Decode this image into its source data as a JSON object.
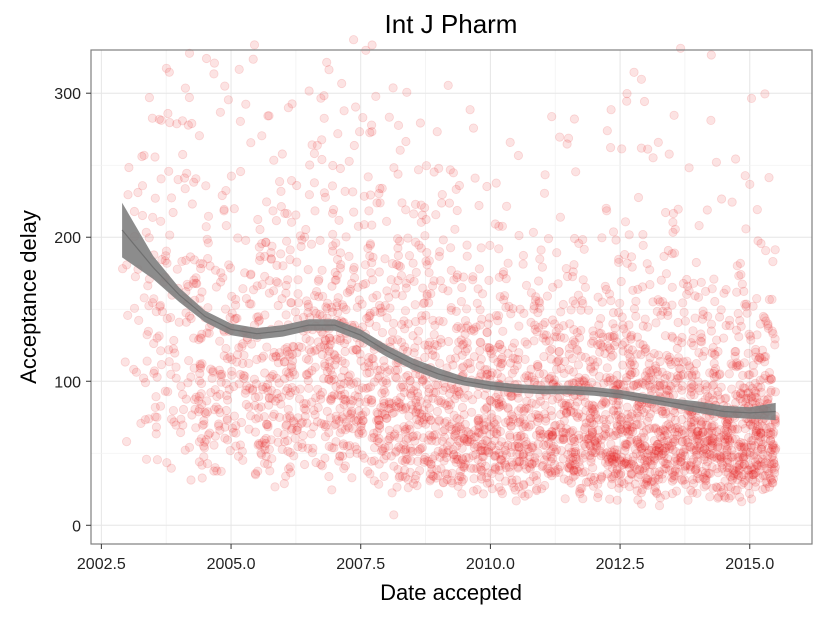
{
  "chart_data": {
    "type": "scatter",
    "title": "Int J Pharm",
    "xlabel": "Date accepted",
    "ylabel": "Acceptance delay",
    "xlim": [
      2002.3,
      2016.2
    ],
    "ylim": [
      -13,
      330
    ],
    "x_ticks": [
      2002.5,
      2005.0,
      2007.5,
      2010.0,
      2012.5,
      2015.0
    ],
    "x_tick_labels": [
      "2002.5",
      "2005.0",
      "2007.5",
      "2010.0",
      "2012.5",
      "2015.0"
    ],
    "y_ticks": [
      0,
      100,
      200,
      300
    ],
    "y_tick_labels": [
      "0",
      "100",
      "200",
      "300"
    ],
    "grid": true,
    "point_color": "#e41a1c",
    "point_opacity": 0.12,
    "band_color": "#808080",
    "x_range": [
      2002.9,
      2015.5
    ],
    "approx_point_count": 3500,
    "smooth_fit": {
      "x": [
        2002.9,
        2003.5,
        2004.0,
        2004.5,
        2005.0,
        2005.5,
        2006.0,
        2006.5,
        2007.0,
        2007.5,
        2008.0,
        2008.5,
        2009.0,
        2009.5,
        2010.0,
        2010.5,
        2011.0,
        2011.5,
        2012.0,
        2012.5,
        2013.0,
        2013.5,
        2014.0,
        2014.5,
        2015.0,
        2015.5
      ],
      "y": [
        205,
        179,
        160,
        145,
        136,
        133,
        135,
        139,
        139,
        132,
        121,
        112,
        105,
        100,
        97,
        95,
        94,
        94,
        93,
        91,
        88,
        85,
        82,
        79,
        78,
        79
      ],
      "ymin": [
        186,
        171,
        155,
        141,
        132,
        129,
        131,
        135,
        135,
        128,
        117,
        108,
        101,
        97,
        94,
        92,
        91,
        91,
        90,
        88,
        85,
        82,
        78,
        75,
        74,
        73
      ],
      "ymax": [
        224,
        187,
        165,
        149,
        140,
        137,
        139,
        143,
        143,
        136,
        125,
        116,
        109,
        103,
        100,
        98,
        97,
        97,
        96,
        94,
        91,
        88,
        86,
        83,
        82,
        85
      ]
    }
  }
}
